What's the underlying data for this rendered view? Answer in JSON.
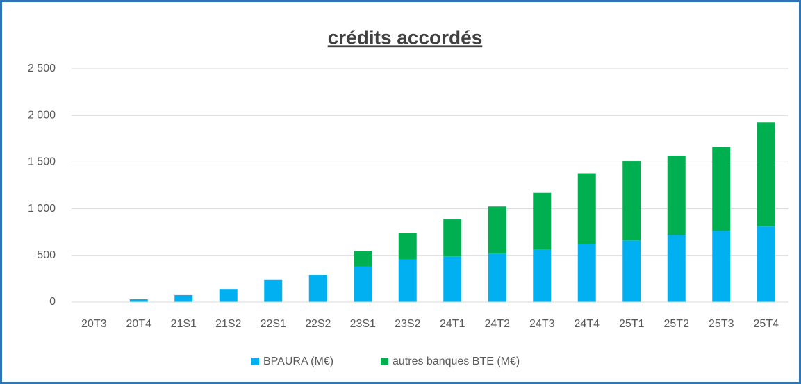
{
  "chart_data": {
    "type": "stacked_bar",
    "title": "crédits accordés",
    "categories": [
      "20T3",
      "20T4",
      "21S1",
      "21S2",
      "22S1",
      "22S2",
      "23S1",
      "23S2",
      "24T1",
      "24T2",
      "24T3",
      "24T4",
      "25T1",
      "25T2",
      "25T3",
      "25T4"
    ],
    "series": [
      {
        "name": "BPAURA (M€)",
        "color": "#00b0f0",
        "values": [
          0,
          30,
          75,
          140,
          240,
          290,
          380,
          455,
          490,
          520,
          560,
          620,
          660,
          720,
          765,
          810
        ]
      },
      {
        "name": "autres banques BTE (M€)",
        "color": "#00b050",
        "values": [
          0,
          0,
          0,
          0,
          0,
          0,
          170,
          285,
          395,
          505,
          610,
          760,
          850,
          850,
          900,
          1115
        ]
      }
    ],
    "ylim": [
      0,
      2500
    ],
    "yticks": [
      0,
      {
        "value": 500,
        "label": "500"
      },
      {
        "value": 1000,
        "label": "1 000"
      },
      {
        "value": 1500,
        "label": "1 500"
      },
      {
        "value": 2000,
        "label": "2 000"
      },
      {
        "value": 2500,
        "label": "2 500"
      }
    ],
    "grid": true,
    "legend": "bottom"
  }
}
